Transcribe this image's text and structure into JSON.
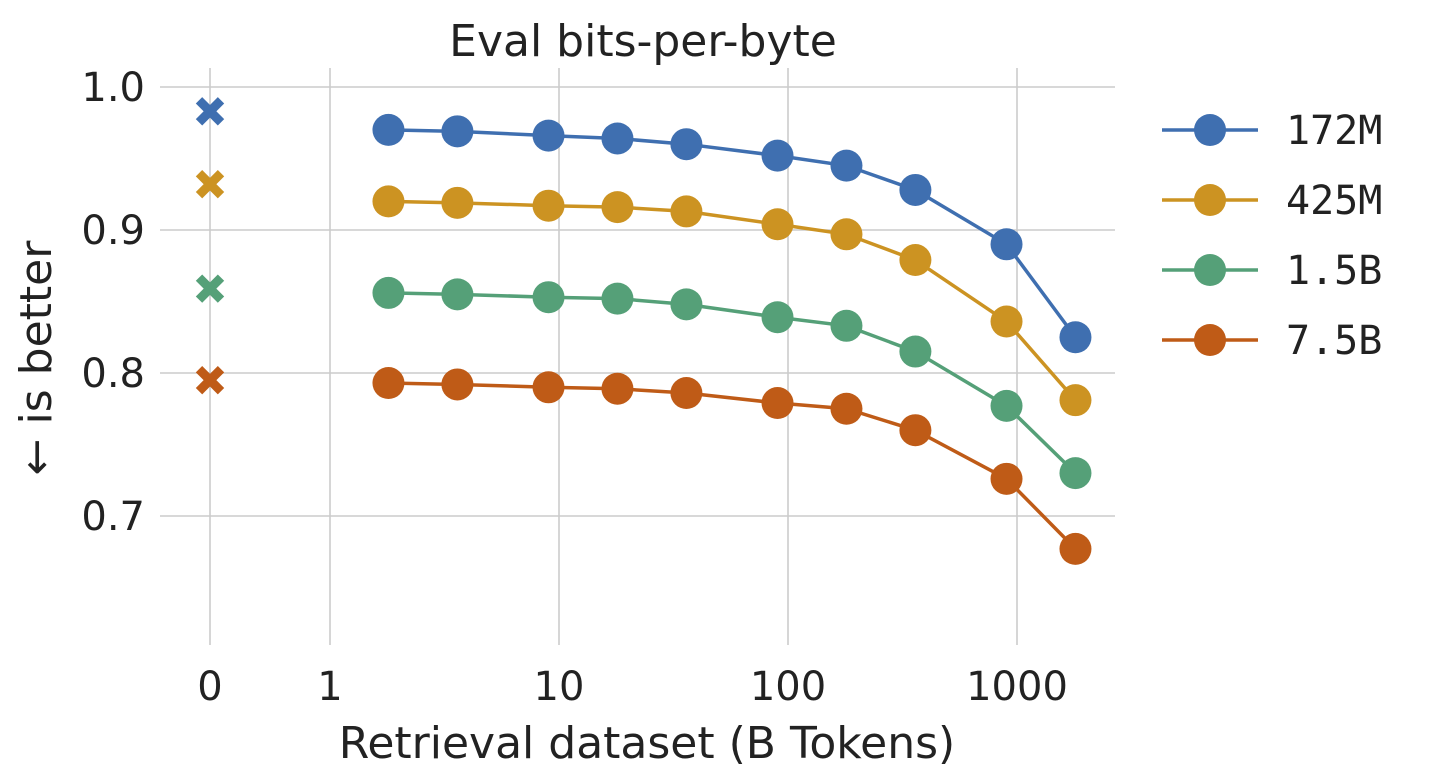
{
  "chart_data": {
    "type": "line",
    "title": "Eval bits-per-byte",
    "xlabel": "Retrieval dataset (B Tokens)",
    "ylabel": "← is better",
    "x_scale": "log",
    "x_ticks": [
      {
        "value": 0,
        "label": "0"
      },
      {
        "value": 1,
        "label": "1"
      },
      {
        "value": 10,
        "label": "10"
      },
      {
        "value": 100,
        "label": "100"
      },
      {
        "value": 1000,
        "label": "1000"
      }
    ],
    "y_ticks": [
      {
        "value": 1.0,
        "label": "1.0"
      },
      {
        "value": 0.9,
        "label": "0.9"
      },
      {
        "value": 0.8,
        "label": "0.8"
      },
      {
        "value": 0.7,
        "label": "0.7"
      }
    ],
    "ylim": [
      0.64,
      1.02
    ],
    "grid": true,
    "legend_position": "right",
    "x": [
      1.8,
      3.6,
      9,
      18,
      36,
      90,
      180,
      360,
      900,
      1800
    ],
    "series": [
      {
        "name": "172M",
        "color": "#3f6fb0",
        "zero_value": 0.983,
        "values": [
          0.97,
          0.969,
          0.966,
          0.964,
          0.96,
          0.952,
          0.945,
          0.928,
          0.89,
          0.825
        ]
      },
      {
        "name": "425M",
        "color": "#cc9322",
        "zero_value": 0.932,
        "values": [
          0.92,
          0.919,
          0.917,
          0.916,
          0.913,
          0.904,
          0.897,
          0.879,
          0.836,
          0.781
        ]
      },
      {
        "name": "1.5B",
        "color": "#55a078",
        "zero_value": 0.859,
        "values": [
          0.856,
          0.855,
          0.853,
          0.852,
          0.848,
          0.839,
          0.833,
          0.815,
          0.777,
          0.73
        ]
      },
      {
        "name": "7.5B",
        "color": "#bf5b17",
        "zero_value": 0.795,
        "values": [
          0.793,
          0.792,
          0.79,
          0.789,
          0.786,
          0.779,
          0.775,
          0.76,
          0.726,
          0.677
        ]
      }
    ]
  }
}
